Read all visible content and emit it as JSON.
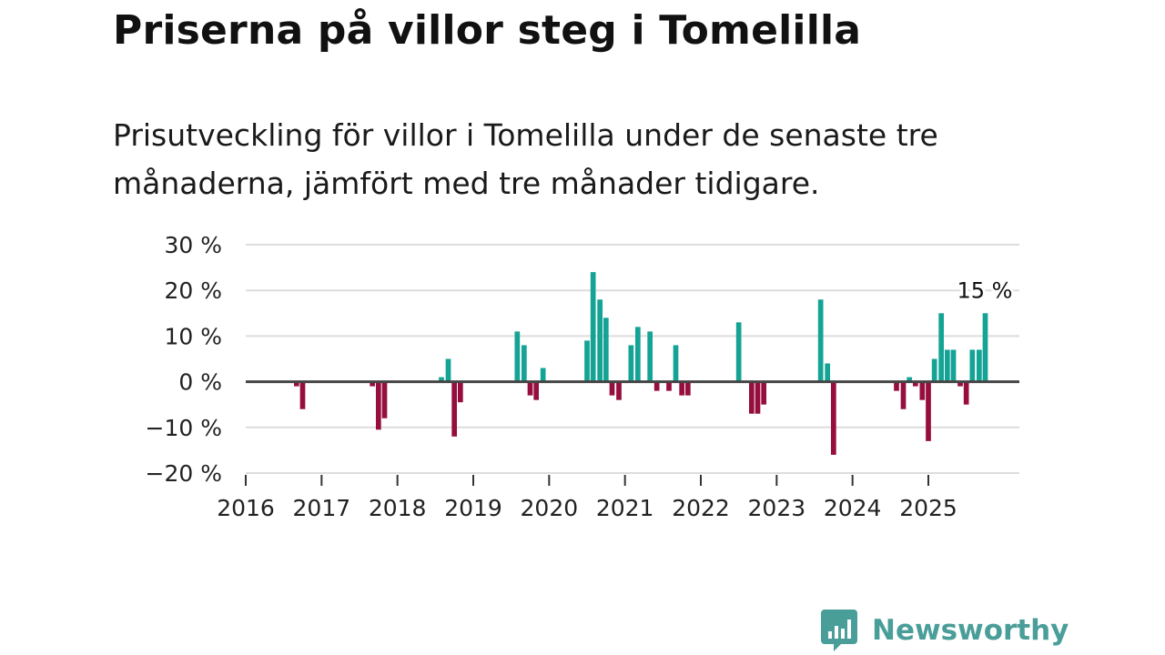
{
  "title": "Priserna på villor steg i Tomelilla",
  "subtitle": "Prisutveckling för villor i Tomelilla under de senaste tre månaderna, jämfört med tre månader tidigare.",
  "brand": "Newsworthy",
  "colors": {
    "positive": "#14a394",
    "negative": "#960e3e",
    "grid": "#dddddd",
    "zero": "#444444",
    "brand": "#4a9e9a"
  },
  "chart_data": {
    "type": "bar",
    "title": "Priserna på villor steg i Tomelilla",
    "ylabel": "",
    "xlabel": "",
    "ylim": [
      -20,
      30
    ],
    "xlim": [
      2016,
      2026.2
    ],
    "y_ticks": [
      30,
      20,
      10,
      0,
      -10,
      -20
    ],
    "y_tick_labels": [
      "30 %",
      "20 %",
      "10 %",
      "0 %",
      "−10 %",
      "−20 %"
    ],
    "x_ticks": [
      2016,
      2017,
      2018,
      2019,
      2020,
      2021,
      2022,
      2023,
      2024,
      2025
    ],
    "x_tick_labels": [
      "2016",
      "2017",
      "2018",
      "2019",
      "2020",
      "2021",
      "2022",
      "2023",
      "2024",
      "2025"
    ],
    "end_label": "15 %",
    "series": [
      {
        "name": "Prisutveckling",
        "points": [
          {
            "x": 2016.67,
            "y": -1
          },
          {
            "x": 2016.75,
            "y": -6
          },
          {
            "x": 2017.67,
            "y": -1
          },
          {
            "x": 2017.75,
            "y": -10.5
          },
          {
            "x": 2017.83,
            "y": -8
          },
          {
            "x": 2018.58,
            "y": 1
          },
          {
            "x": 2018.67,
            "y": 5
          },
          {
            "x": 2018.75,
            "y": -12
          },
          {
            "x": 2018.83,
            "y": -4.5
          },
          {
            "x": 2019.58,
            "y": 11
          },
          {
            "x": 2019.67,
            "y": 8
          },
          {
            "x": 2019.75,
            "y": -3
          },
          {
            "x": 2019.83,
            "y": -4
          },
          {
            "x": 2019.92,
            "y": 3
          },
          {
            "x": 2020.5,
            "y": 9
          },
          {
            "x": 2020.58,
            "y": 24
          },
          {
            "x": 2020.67,
            "y": 18
          },
          {
            "x": 2020.75,
            "y": 14
          },
          {
            "x": 2020.83,
            "y": -3
          },
          {
            "x": 2020.92,
            "y": -4
          },
          {
            "x": 2021.08,
            "y": 8
          },
          {
            "x": 2021.17,
            "y": 12
          },
          {
            "x": 2021.33,
            "y": 11
          },
          {
            "x": 2021.42,
            "y": -2
          },
          {
            "x": 2021.58,
            "y": -2
          },
          {
            "x": 2021.67,
            "y": 8
          },
          {
            "x": 2021.75,
            "y": -3
          },
          {
            "x": 2021.83,
            "y": -3
          },
          {
            "x": 2022.5,
            "y": 13
          },
          {
            "x": 2022.67,
            "y": -7
          },
          {
            "x": 2022.75,
            "y": -7
          },
          {
            "x": 2022.83,
            "y": -5
          },
          {
            "x": 2023.58,
            "y": 18
          },
          {
            "x": 2023.67,
            "y": 4
          },
          {
            "x": 2023.75,
            "y": -16
          },
          {
            "x": 2024.58,
            "y": -2
          },
          {
            "x": 2024.67,
            "y": -6
          },
          {
            "x": 2024.75,
            "y": 1
          },
          {
            "x": 2024.83,
            "y": -1
          },
          {
            "x": 2024.92,
            "y": -4
          },
          {
            "x": 2025.0,
            "y": -13
          },
          {
            "x": 2025.08,
            "y": 5
          },
          {
            "x": 2025.17,
            "y": 15
          },
          {
            "x": 2025.25,
            "y": 7
          },
          {
            "x": 2025.33,
            "y": 7
          },
          {
            "x": 2025.42,
            "y": -1
          },
          {
            "x": 2025.5,
            "y": -5
          },
          {
            "x": 2025.58,
            "y": 7
          },
          {
            "x": 2025.67,
            "y": 7
          },
          {
            "x": 2025.75,
            "y": 15
          }
        ]
      }
    ]
  }
}
